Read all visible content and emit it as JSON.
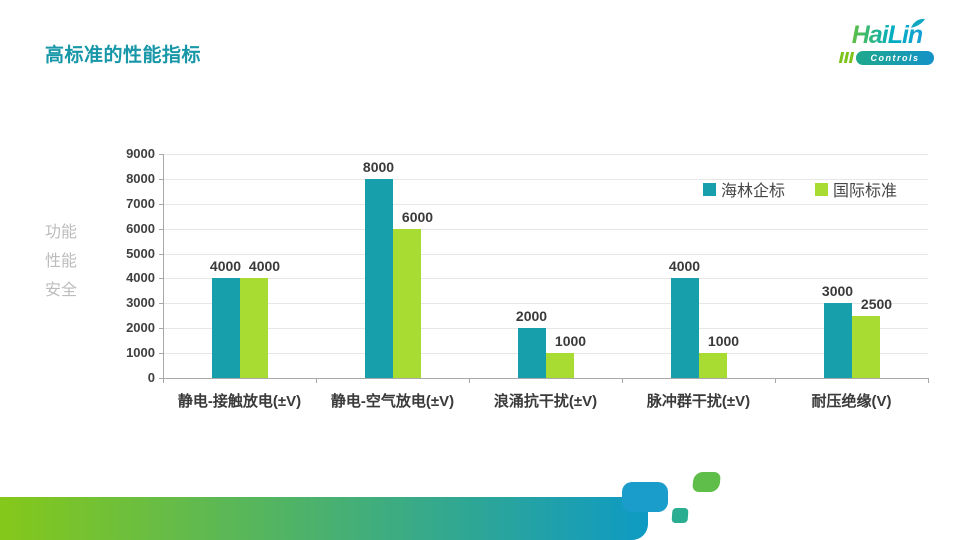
{
  "slide_title": "高标准的性能指标",
  "logo": {
    "brand": "HaiLin",
    "sub": "Controls"
  },
  "axis_title_lines": [
    "功能",
    "性能",
    "安全"
  ],
  "chart_data": {
    "type": "bar",
    "title": "",
    "categories": [
      "静电-接触放电(±V)",
      "静电-空气放电(±V)",
      "浪涌抗干扰(±V)",
      "脉冲群干扰(±V)",
      "耐压绝缘(V)"
    ],
    "series": [
      {
        "name": "海林企标",
        "color": "#17A0AB",
        "values": [
          4000,
          8000,
          2000,
          4000,
          3000
        ]
      },
      {
        "name": "国际标准",
        "color": "#A9DC33",
        "values": [
          4000,
          6000,
          1000,
          1000,
          2500
        ]
      }
    ],
    "ylim": [
      0,
      9000
    ],
    "ytick_step": 1000,
    "grid": true,
    "data_labels": true,
    "legend_position": "top-right",
    "y_axis_title": "功能 性能 安全"
  },
  "colors": {
    "title": "#1797A8",
    "axis_text": "#3F3F3F",
    "grid_line": "#E7E7E7",
    "axis_line": "#A8A8A8",
    "muted_label": "#BCBCBC",
    "deco_green": "#85C81A",
    "deco_teal": "#0E9AC4",
    "deco_block": "#1B9DCB",
    "deco_square_teal": "#2BAD92",
    "deco_square_green": "#5FBD49",
    "logo_green": "#7CC41C",
    "logo_blue": "#1E9BDC"
  }
}
